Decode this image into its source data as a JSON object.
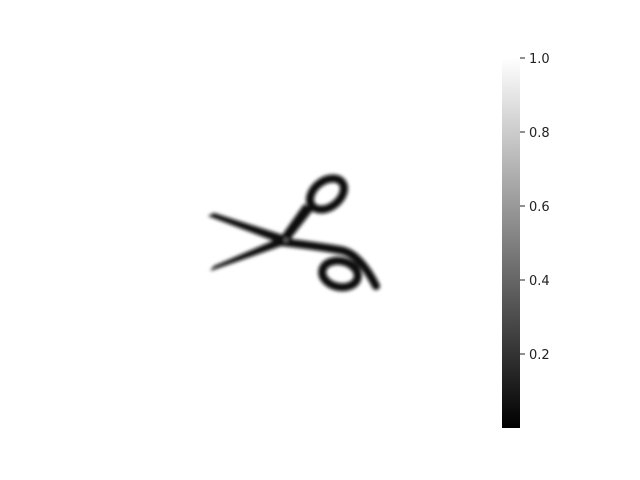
{
  "chart_data": {
    "type": "heatmap",
    "title": "",
    "xlabel": "",
    "ylabel": "",
    "axes_visible": false,
    "colormap": "gray",
    "image_content": "scissors",
    "colorbar": {
      "range": [
        0.0,
        1.0
      ],
      "ticks": [
        1.0,
        0.8,
        0.6,
        0.4,
        0.2
      ],
      "tick_labels": [
        "1.0",
        "0.8",
        "0.6",
        "0.4",
        "0.2"
      ],
      "orientation": "vertical",
      "placement": "right",
      "low_color": "#000000",
      "high_color": "#ffffff"
    }
  }
}
